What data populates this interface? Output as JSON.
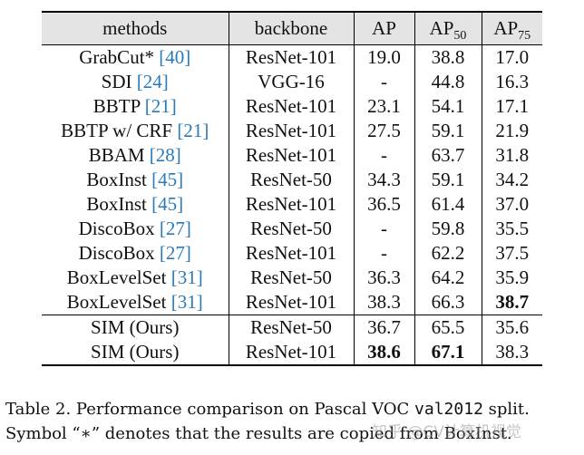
{
  "table": {
    "headers": {
      "methods": "methods",
      "backbone": "backbone",
      "ap": "AP",
      "ap50_base": "AP",
      "ap50_sub": "50",
      "ap75_base": "AP",
      "ap75_sub": "75"
    },
    "rows": [
      {
        "method": "GrabCut* ",
        "ref": "[40]",
        "backbone": "ResNet-101",
        "ap": "19.0",
        "ap50": "38.8",
        "ap75": "17.0"
      },
      {
        "method": "SDI ",
        "ref": "[24]",
        "backbone": "VGG-16",
        "ap": "-",
        "ap50": "44.8",
        "ap75": "16.3"
      },
      {
        "method": "BBTP ",
        "ref": "[21]",
        "backbone": "ResNet-101",
        "ap": "23.1",
        "ap50": "54.1",
        "ap75": "17.1"
      },
      {
        "method": "BBTP w/ CRF ",
        "ref": "[21]",
        "backbone": "ResNet-101",
        "ap": "27.5",
        "ap50": "59.1",
        "ap75": "21.9"
      },
      {
        "method": "BBAM ",
        "ref": "[28]",
        "backbone": "ResNet-101",
        "ap": "-",
        "ap50": "63.7",
        "ap75": "31.8"
      },
      {
        "method": "BoxInst ",
        "ref": "[45]",
        "backbone": "ResNet-50",
        "ap": "34.3",
        "ap50": "59.1",
        "ap75": "34.2"
      },
      {
        "method": "BoxInst ",
        "ref": "[45]",
        "backbone": "ResNet-101",
        "ap": "36.5",
        "ap50": "61.4",
        "ap75": "37.0"
      },
      {
        "method": "DiscoBox ",
        "ref": "[27]",
        "backbone": "ResNet-50",
        "ap": "-",
        "ap50": "59.8",
        "ap75": "35.5"
      },
      {
        "method": "DiscoBox ",
        "ref": "[27]",
        "backbone": "ResNet-101",
        "ap": "-",
        "ap50": "62.2",
        "ap75": "37.5"
      },
      {
        "method": "BoxLevelSet ",
        "ref": "[31]",
        "backbone": "ResNet-50",
        "ap": "36.3",
        "ap50": "64.2",
        "ap75": "35.9"
      },
      {
        "method": "BoxLevelSet ",
        "ref": "[31]",
        "backbone": "ResNet-101",
        "ap": "38.3",
        "ap50": "66.3",
        "ap75": "38.7"
      }
    ],
    "ours_rows": [
      {
        "method": "SIM (Ours)",
        "backbone": "ResNet-50",
        "ap": "36.7",
        "ap50": "65.5",
        "ap75": "35.6"
      },
      {
        "method": "SIM (Ours)",
        "backbone": "ResNet-101",
        "ap": "38.6",
        "ap50": "67.1",
        "ap75": "38.3"
      }
    ]
  },
  "caption": {
    "line1_a": "Table 2. Performance comparison on Pascal VOC ",
    "line1_code": "val2012",
    "line1_b": " split.",
    "line2": "Symbol “∗” denotes that the results are copied from BoxInst."
  },
  "watermark": "知乎 @CV计算机视觉"
}
